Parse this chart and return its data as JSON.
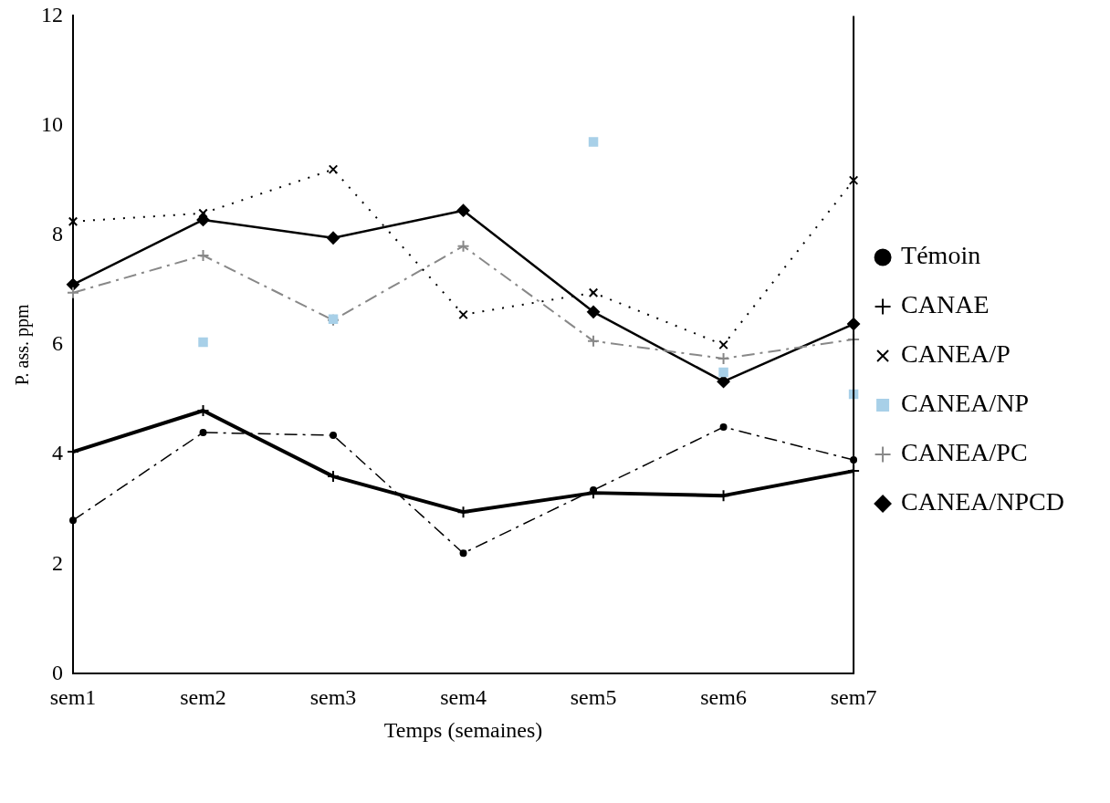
{
  "chart_data": {
    "type": "line",
    "xlabel": "Temps (semaines)",
    "ylabel": "P. ass. ppm",
    "categories": [
      "sem1",
      "sem2",
      "sem3",
      "sem4",
      "sem5",
      "sem6",
      "sem7"
    ],
    "ylim": [
      0,
      12
    ],
    "yticks": [
      0,
      2,
      4,
      6,
      8,
      10,
      12
    ],
    "grid": false,
    "legend": "right",
    "series": [
      {
        "name": "Témoin",
        "color": "#000000",
        "marker": "circle",
        "line_style": "dashed",
        "values": [
          2.8,
          4.4,
          4.35,
          2.2,
          3.35,
          4.5,
          3.9
        ]
      },
      {
        "name": "CANAE",
        "color": "#000000",
        "marker": "cross",
        "line_style": "solid",
        "values": [
          4.05,
          4.8,
          3.6,
          2.95,
          3.3,
          3.25,
          3.7
        ]
      },
      {
        "name": "CANEA/P",
        "color": "#000000",
        "marker": "x",
        "line_style": "dotted",
        "values": [
          8.25,
          8.4,
          9.2,
          6.55,
          6.95,
          6.0,
          9.0
        ]
      },
      {
        "name": "CANEA/NP",
        "type": "scatter",
        "color": "#a8d0e8",
        "marker": "square",
        "values": [
          null,
          6.05,
          6.47,
          null,
          9.7,
          5.5,
          5.1
        ]
      },
      {
        "name": "CANEA/PC",
        "color": "#888888",
        "marker": "cross",
        "line_style": "dashed",
        "values": [
          6.95,
          7.63,
          6.45,
          7.8,
          6.07,
          5.75,
          6.1
        ]
      },
      {
        "name": "CANEA/NPCD",
        "color": "#000000",
        "marker": "diamond",
        "line_style": "solid",
        "values": [
          7.1,
          8.28,
          7.95,
          8.45,
          6.6,
          5.33,
          6.38
        ]
      }
    ]
  }
}
